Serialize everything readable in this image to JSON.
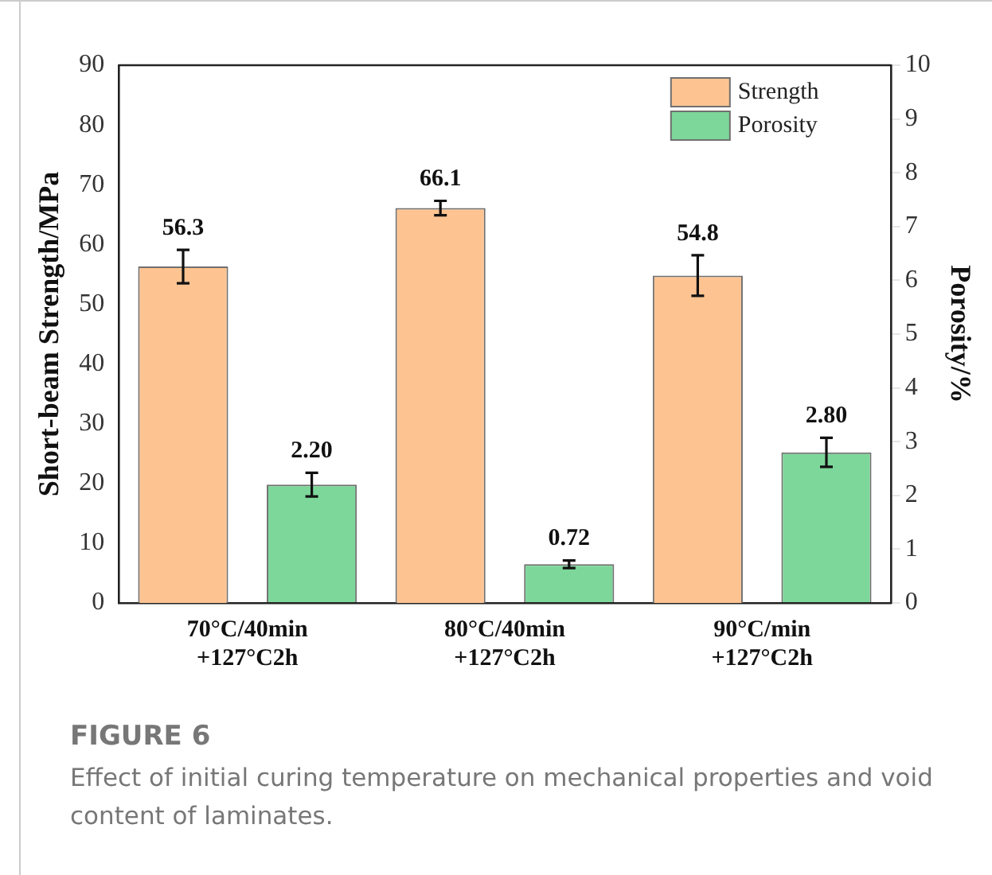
{
  "chart_data": {
    "type": "bar",
    "title": "FIGURE 6",
    "subtitle": "Effect of initial curing temperature on mechanical properties and void content of laminates.",
    "categories": [
      "70°C/40min\n+127°C2h",
      "80°C/40min\n+127°C2h",
      "90°C/min\n+127°C2h"
    ],
    "ylabel": "Short-beam Strength/MPa",
    "y2label": "Porosity/%",
    "ylim": [
      0,
      90
    ],
    "yticks": [
      0,
      10,
      20,
      30,
      40,
      50,
      60,
      70,
      80,
      90
    ],
    "y2lim": [
      0,
      10
    ],
    "y2ticks": [
      0,
      1,
      2,
      3,
      4,
      5,
      6,
      7,
      8,
      9,
      10
    ],
    "series": [
      {
        "name": "Strength",
        "color": "#fdc492",
        "values": [
          56.3,
          66.1,
          54.8
        ],
        "errors": [
          2.8,
          1.2,
          3.4
        ]
      },
      {
        "name": "Porosity",
        "color": "#7dd79a",
        "values": [
          2.2,
          0.72,
          2.8
        ],
        "errors": [
          0.22,
          0.07,
          0.27
        ],
        "value_labels": [
          "2.20",
          "0.72",
          "2.80"
        ],
        "axis": "y2"
      }
    ],
    "data_labels": true,
    "legend": "top right",
    "grid": false
  }
}
